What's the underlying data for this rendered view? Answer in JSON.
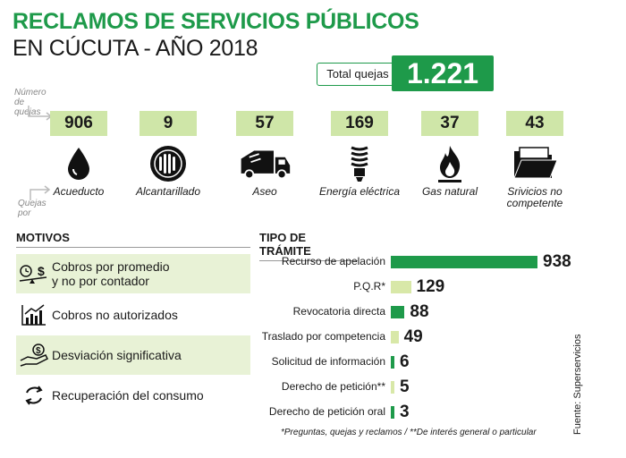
{
  "title_line1": "RECLAMOS DE SERVICIOS PÚBLICOS",
  "title_line2": "EN CÚCUTA - AÑO 2018",
  "total": {
    "label": "Total quejas",
    "value": "1.221"
  },
  "notes": {
    "numero": "Número de quejas",
    "quejas_por": "Quejas por"
  },
  "categories": [
    {
      "count": "906",
      "label": "Acueducto",
      "icon": "water-drop-icon"
    },
    {
      "count": "9",
      "label": "Alcantarillado",
      "icon": "sewer-grate-icon"
    },
    {
      "count": "57",
      "label": "Aseo",
      "icon": "garbage-truck-icon"
    },
    {
      "count": "169",
      "label": "Energía eléctrica",
      "icon": "lightbulb-icon"
    },
    {
      "count": "37",
      "label": "Gas natural",
      "icon": "gas-flame-icon"
    },
    {
      "count": "43",
      "label": "Srivicios no competente",
      "icon": "folder-icon"
    }
  ],
  "motivos": {
    "title": "MOTIVOS",
    "items": [
      {
        "label": "Cobros por promedio y no por contador",
        "icon": "scale-money-icon"
      },
      {
        "label": "Cobros no autorizados",
        "icon": "chart-up-icon"
      },
      {
        "label": "Desviación significativa",
        "icon": "hand-money-icon"
      },
      {
        "label": "Recuperación del consumo",
        "icon": "refresh-icon"
      }
    ]
  },
  "tramite_title": "TIPO DE TRÁMITE",
  "chart_data": {
    "type": "bar",
    "orientation": "horizontal",
    "title": "TIPO DE TRÁMITE",
    "categories": [
      "Recurso de apelación",
      "P.Q.R*",
      "Revocatoria directa",
      "Traslado por competencia",
      "Solicitud de información",
      "Derecho de petición**",
      "Derecho de petición oral"
    ],
    "values": [
      938,
      129,
      88,
      49,
      6,
      5,
      3
    ],
    "value_labels": [
      "938",
      "129",
      "88",
      "49",
      "6",
      "5",
      "3"
    ],
    "colors": [
      "#1e9a4a",
      "#d8e8a8",
      "#1e9a4a",
      "#d8e8a8",
      "#1e9a4a",
      "#d8e8a8",
      "#1e9a4a"
    ]
  },
  "footnote": "*Preguntas, quejas y reclamos / **De interés general o particular",
  "source": "Fuente: Superservicios",
  "colors": {
    "accent": "#1e9a4a",
    "light": "#cfe6a8",
    "shade": "#e8f2d6"
  }
}
